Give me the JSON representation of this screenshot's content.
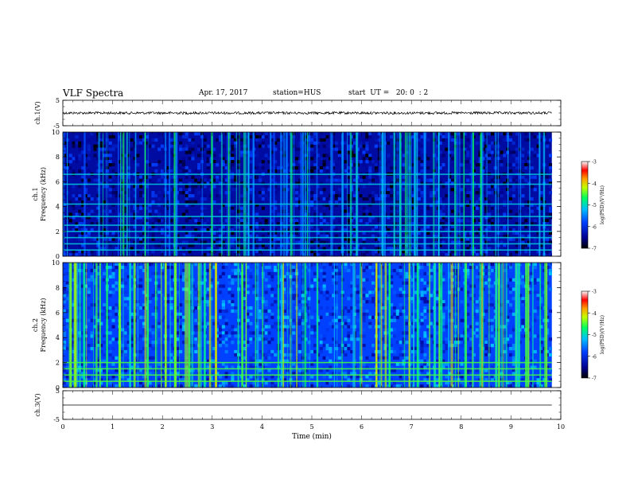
{
  "header": {
    "title": "VLF Spectra",
    "date": "Apr. 17, 2017",
    "station": "station=HUS",
    "start": "start  UT =   20: 0  : 2"
  },
  "chart_data": {
    "type": "heatmap",
    "title": "VLF Spectra",
    "xlabel": "Time  (min)",
    "xlim": [
      0,
      10
    ],
    "x_ticks": [
      "0",
      "1",
      "2",
      "3",
      "4",
      "5",
      "6",
      "7",
      "8",
      "9",
      "10"
    ],
    "panels": [
      {
        "kind": "waveform",
        "ylabel": "ch.1(V)",
        "ylim": [
          -5,
          5
        ],
        "y_ticks": [
          "5",
          "-5"
        ],
        "waveform_amplitude": 0.5
      },
      {
        "kind": "spectrogram",
        "ylabel_line1": "ch.1",
        "ylabel_line2": "Frequency  (kHz)",
        "ylim": [
          0,
          10
        ],
        "y_ticks": [
          "0",
          "2",
          "4",
          "6",
          "8",
          "10"
        ],
        "colorbar_label": "log(PSD)(V²/Hz)",
        "colorbar_range": [
          -7,
          -3
        ],
        "colorbar_ticks": [
          "-3",
          "-4",
          "-5",
          "-6",
          "-7"
        ],
        "horizontal_lines_khz": [
          0.5,
          1.0,
          1.5,
          2.0,
          2.5,
          3.2,
          4.2,
          5.8,
          6.6
        ],
        "background_level": -6.4
      },
      {
        "kind": "spectrogram",
        "ylabel_line1": "ch.2",
        "ylabel_line2": "Frequency  (kHz)",
        "ylim": [
          0,
          10
        ],
        "y_ticks": [
          "0",
          "2",
          "4",
          "6",
          "8",
          "10"
        ],
        "colorbar_label": "log(PSD)(V²/Hz)",
        "colorbar_range": [
          -7,
          -3
        ],
        "colorbar_ticks": [
          "-3",
          "-4",
          "-5",
          "-6",
          "-7"
        ],
        "horizontal_lines_khz": [
          0.5,
          1.0,
          1.5,
          2.0
        ],
        "background_level": -5.8
      },
      {
        "kind": "waveform",
        "ylabel": "ch.3(V)",
        "ylim": [
          -5,
          5
        ],
        "y_ticks": [
          "5",
          "-5"
        ],
        "waveform_amplitude": 0
      }
    ],
    "data_end_min": 9.82
  }
}
